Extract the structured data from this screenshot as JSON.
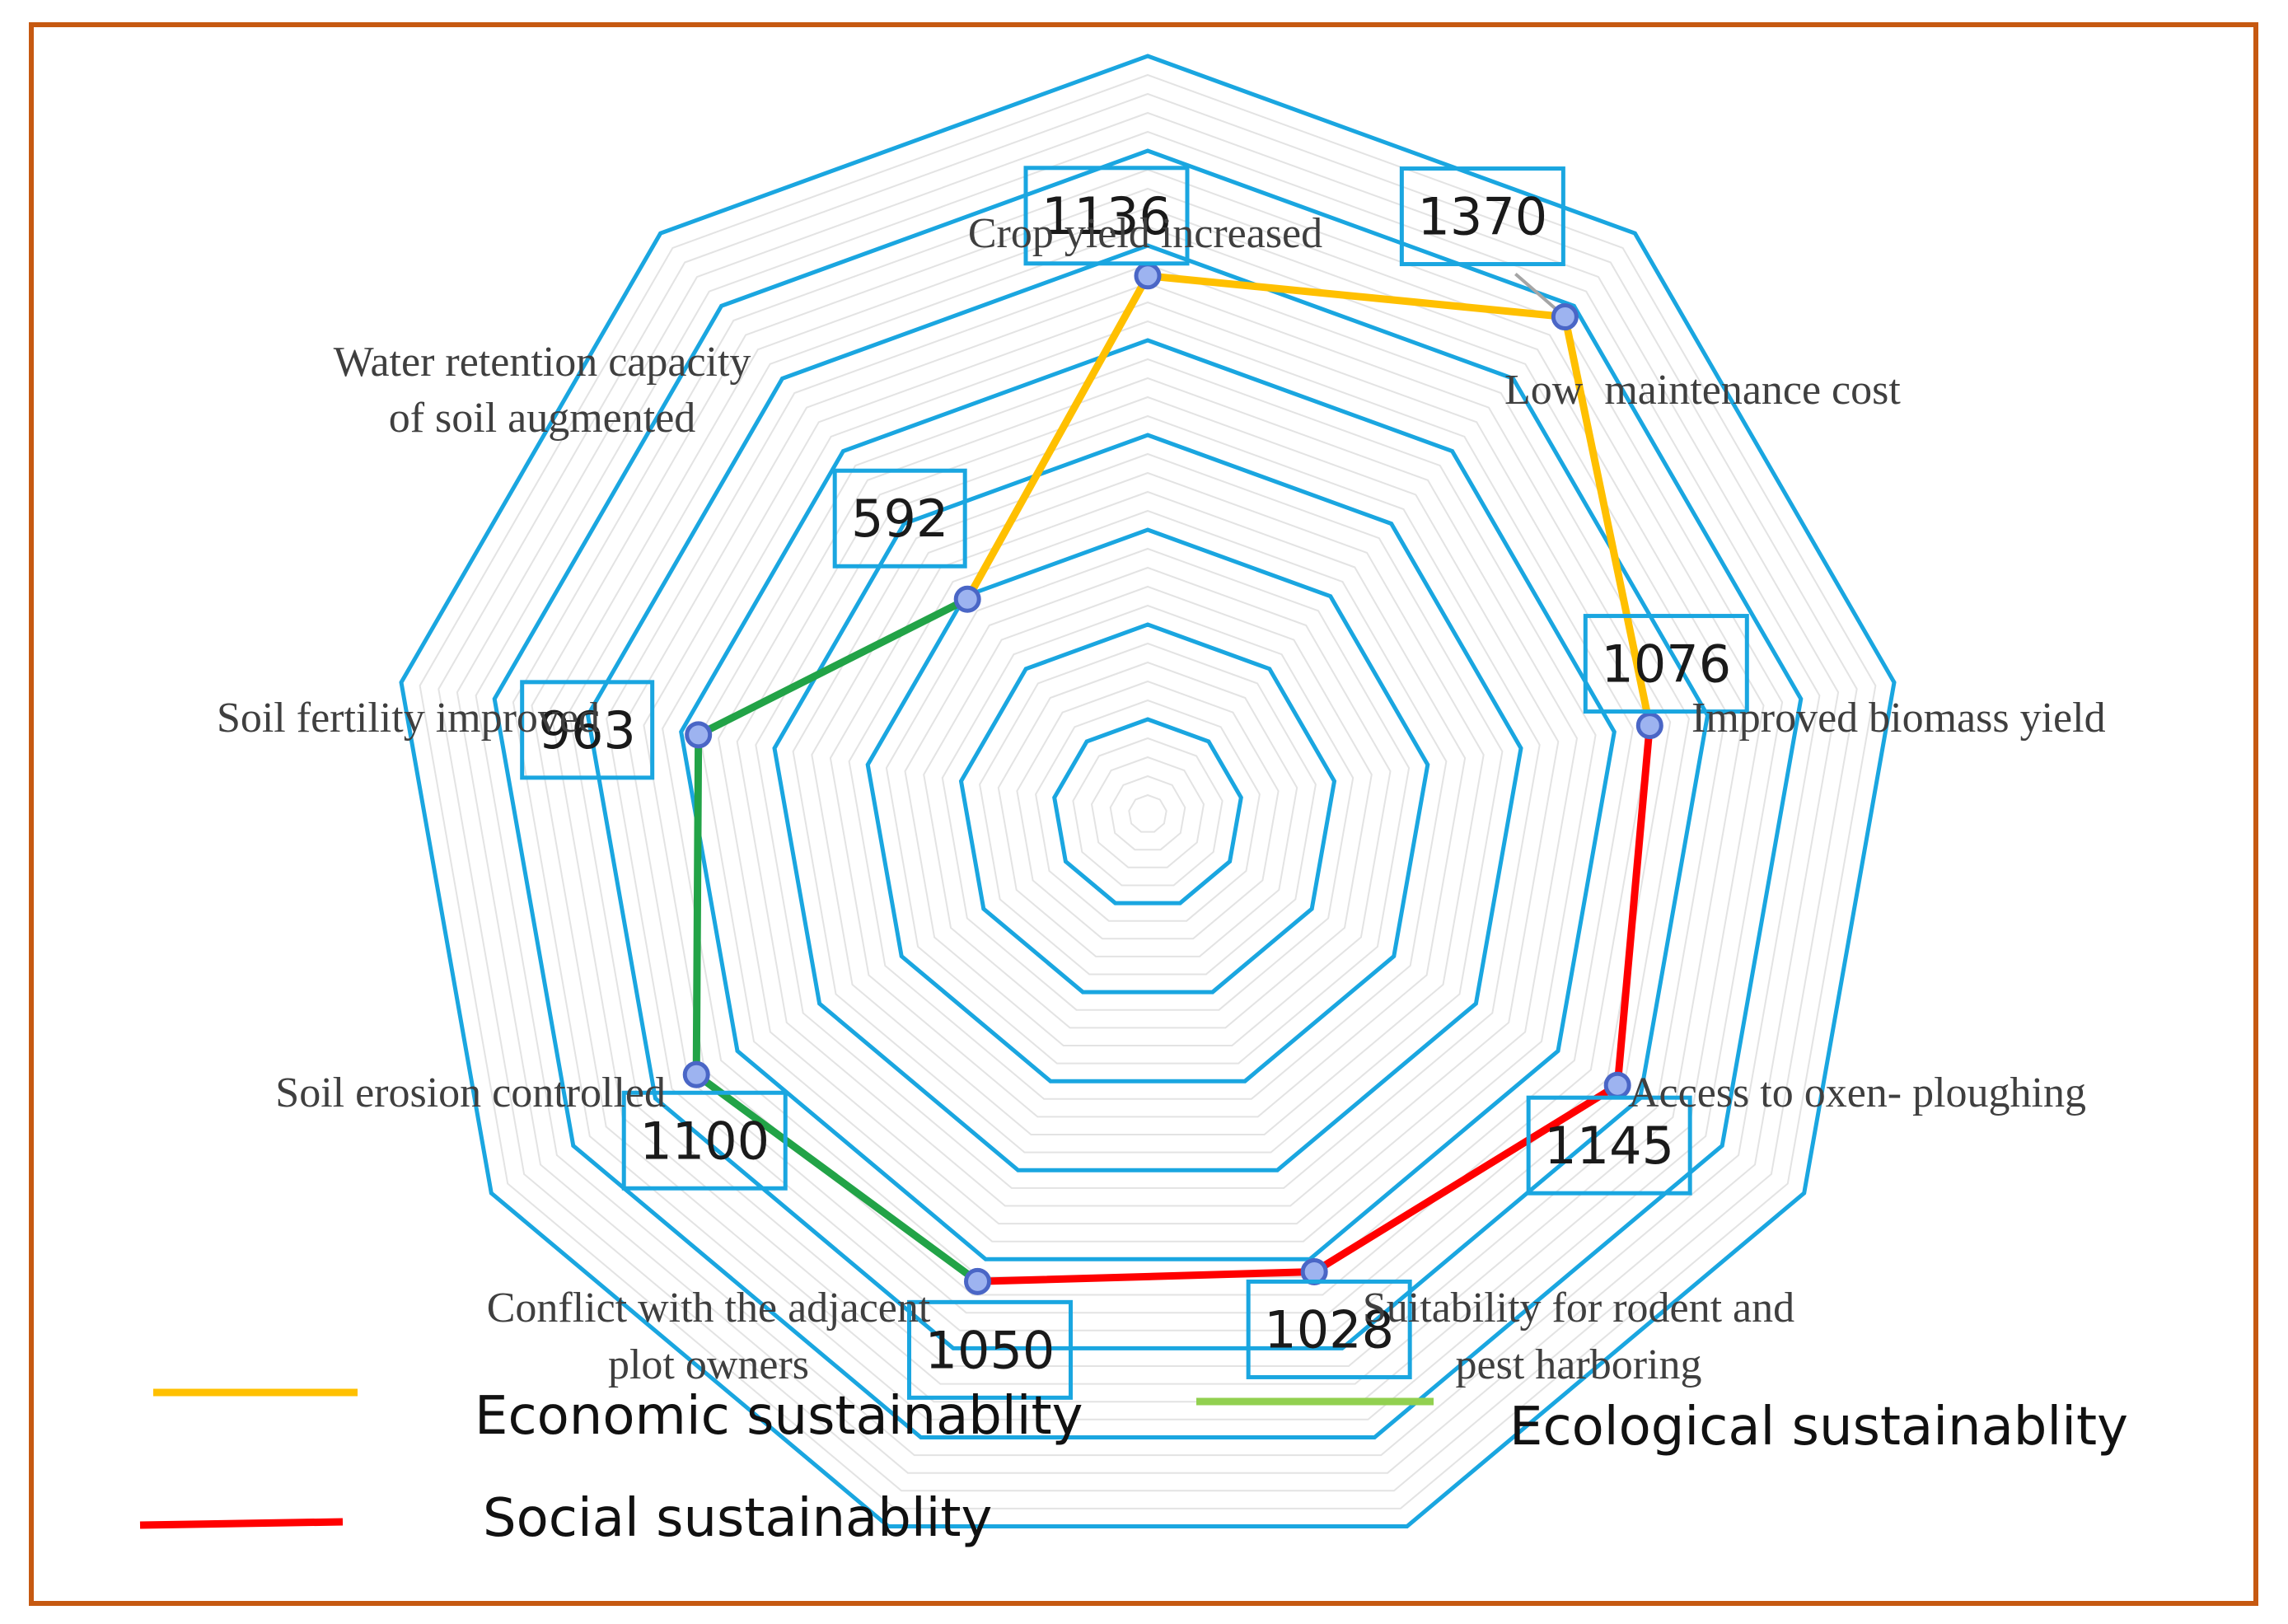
{
  "colors": {
    "border": "#C65911",
    "grid": "#1AA6E0",
    "grid_minor": "#E3E3E3",
    "marker_fill": "#9DB3F0",
    "marker_stroke": "#4A66C6",
    "gray_segment": "#A5A5A5"
  },
  "chart_data": {
    "type": "radar",
    "categories": [
      "Crop yield increased",
      "Low  maintenance cost",
      "Improved biomass yield",
      "Access to oxen- ploughing",
      "Suitability for rodent and pest harboring",
      "Conflict with the adjacent plot owners",
      "Soil erosion controlled",
      "Soil fertility improved",
      "Water retention capacity of soil augmented"
    ],
    "values": [
      1136,
      1370,
      1076,
      1145,
      1028,
      1050,
      1100,
      963,
      592
    ],
    "value_labels": [
      "1136",
      "1370",
      "1076",
      "1145",
      "1028",
      "1050",
      "1100",
      "963",
      "592"
    ],
    "label_lines": [
      [
        "Crop yield increased"
      ],
      [
        "Low  maintenance cost"
      ],
      [
        "Improved biomass yield"
      ],
      [
        "Access to oxen- ploughing"
      ],
      [
        "Suitability for rodent and",
        "pest harboring"
      ],
      [
        "Conflict with the adjacent",
        "plot owners"
      ],
      [
        "Soil erosion controlled"
      ],
      [
        "Soil fertility improved"
      ],
      [
        "Water retention capacity",
        "of soil augmented"
      ]
    ],
    "rmax": 1600,
    "ring_step": 200,
    "series": [
      {
        "name": "Economic sustainablity",
        "color": "#FFC000",
        "indices": [
          8,
          0,
          1,
          2
        ]
      },
      {
        "name": "Social sustainablity",
        "color": "#FF0000",
        "indices": [
          2,
          3,
          4,
          5
        ]
      },
      {
        "name": "Ecological sustainablity",
        "color": "#22A347",
        "legend_color": "#92D050",
        "indices": [
          5,
          6,
          7,
          8
        ]
      }
    ]
  },
  "legend": [
    {
      "label": "Economic sustainablity",
      "color": "#FFC000"
    },
    {
      "label": "Ecological sustainablity",
      "color": "#92D050"
    },
    {
      "label": "Social sustainablity",
      "color": "#FF0000"
    }
  ]
}
